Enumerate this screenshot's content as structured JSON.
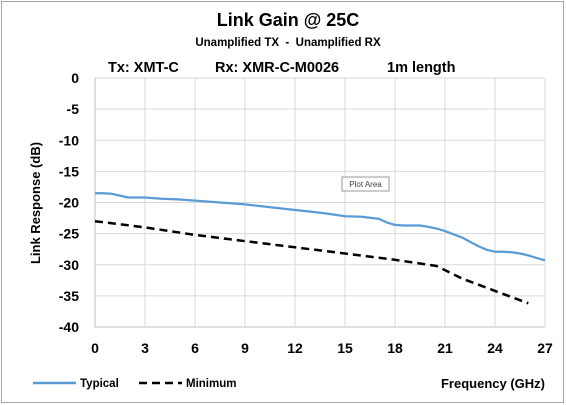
{
  "chart_data": {
    "type": "line",
    "title": "Link Gain @ 25C",
    "subtitle": "Unamplified TX  -  Unamplified RX",
    "subtitle2": {
      "tx": "Tx: XMT-C",
      "rx": "Rx: XMR-C-M0026",
      "length": "1m length"
    },
    "xlabel": "Frequency (GHz)",
    "ylabel": "Link Response (dB)",
    "xlim": [
      0,
      27
    ],
    "ylim": [
      -40,
      0
    ],
    "x_ticks": [
      "0",
      "3",
      "6",
      "9",
      "12",
      "15",
      "18",
      "21",
      "24",
      "27"
    ],
    "y_ticks": [
      "0",
      "-5",
      "-10",
      "-15",
      "-20",
      "-25",
      "-30",
      "-35",
      "-40"
    ],
    "grid": true,
    "legend_position": "bottom-left",
    "tooltip": "Plot Area",
    "series": [
      {
        "name": "Typical",
        "color": "#5b9bd5",
        "style": "solid",
        "x": [
          0,
          0.5,
          1,
          2,
          3,
          4,
          5,
          6,
          7,
          8,
          9,
          10,
          11,
          12,
          13,
          14,
          15,
          16,
          17,
          17.5,
          18,
          18.5,
          19,
          19.5,
          20,
          20.5,
          21,
          21.5,
          22,
          22.5,
          23,
          23.5,
          24,
          24.5,
          25,
          25.5,
          26,
          26.5,
          27
        ],
        "values": [
          -18.5,
          -18.5,
          -18.6,
          -19.2,
          -19.2,
          -19.4,
          -19.5,
          -19.7,
          -19.9,
          -20.1,
          -20.3,
          -20.6,
          -20.9,
          -21.2,
          -21.5,
          -21.8,
          -22.2,
          -22.3,
          -22.6,
          -23.2,
          -23.6,
          -23.7,
          -23.7,
          -23.7,
          -23.9,
          -24.2,
          -24.6,
          -25.1,
          -25.6,
          -26.3,
          -27.0,
          -27.6,
          -27.9,
          -27.9,
          -28.0,
          -28.2,
          -28.5,
          -28.9,
          -29.3
        ]
      },
      {
        "name": "Minimum",
        "color": "#000000",
        "style": "dashed",
        "x": [
          0,
          3,
          6,
          9,
          12,
          15,
          18,
          20.5,
          22,
          24,
          26
        ],
        "values": [
          -23,
          -24,
          -25.2,
          -26.2,
          -27.2,
          -28.2,
          -29.2,
          -30.2,
          -32.2,
          -34.2,
          -36.2
        ]
      }
    ]
  }
}
